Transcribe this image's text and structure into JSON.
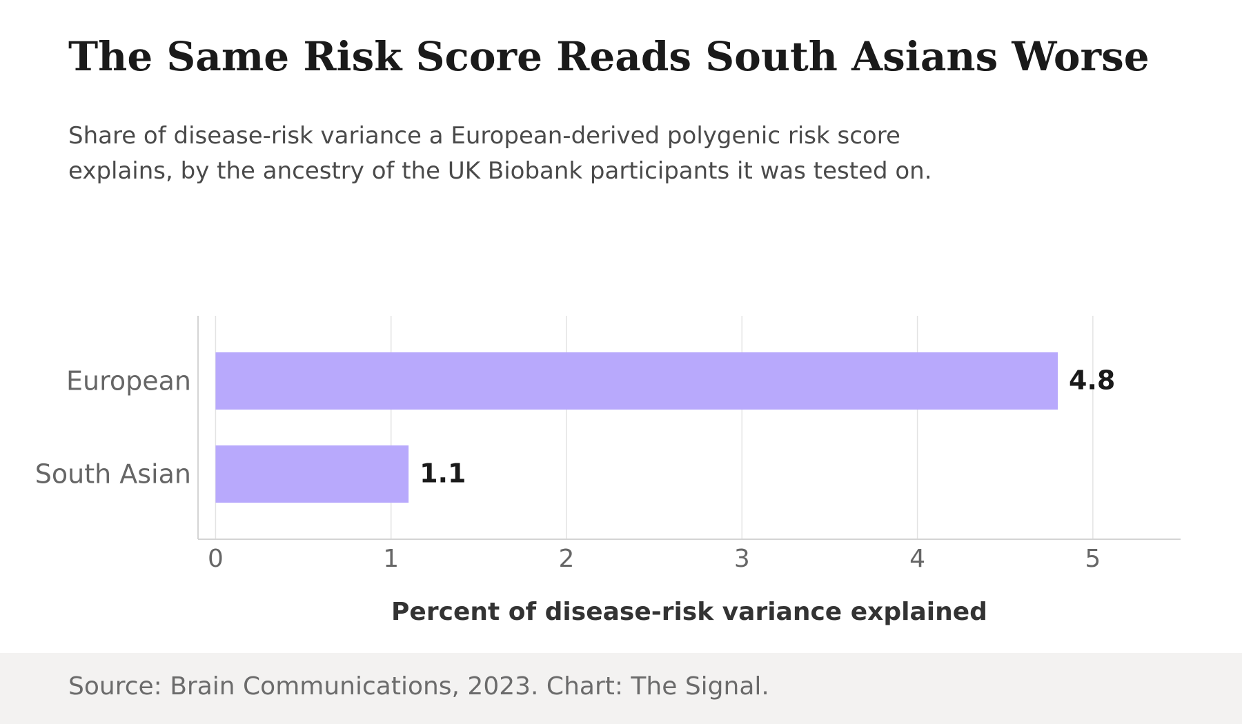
{
  "header": {
    "title": "The Same Risk Score Reads South Asians Worse",
    "subtitle": "Share of disease-risk variance a European-derived polygenic risk score explains, by the ancestry of the UK Biobank participants it was tested on."
  },
  "chart_data": {
    "type": "bar",
    "orientation": "horizontal",
    "categories": [
      "European",
      "South Asian"
    ],
    "values": [
      4.8,
      1.1
    ],
    "value_labels": [
      "4.8",
      "1.1"
    ],
    "xlabel": "Percent of disease-risk variance explained",
    "ylabel": "",
    "xlim": [
      -0.1,
      5.5
    ],
    "xticks": [
      "0",
      "1",
      "2",
      "3",
      "4",
      "5"
    ],
    "grid": "vertical",
    "legend": "none",
    "bar_color": "#b8a9fc",
    "gridline_color": "#e3e3e3",
    "axis_color": "#d4d4d4",
    "tick_label_color": "#666666",
    "value_label_color": "#1a1a1a"
  },
  "footer": {
    "source": "Source: Brain Communications, 2023. Chart: The Signal."
  },
  "colors": {
    "background": "#ffffff",
    "footer_background": "#f3f2f1"
  }
}
